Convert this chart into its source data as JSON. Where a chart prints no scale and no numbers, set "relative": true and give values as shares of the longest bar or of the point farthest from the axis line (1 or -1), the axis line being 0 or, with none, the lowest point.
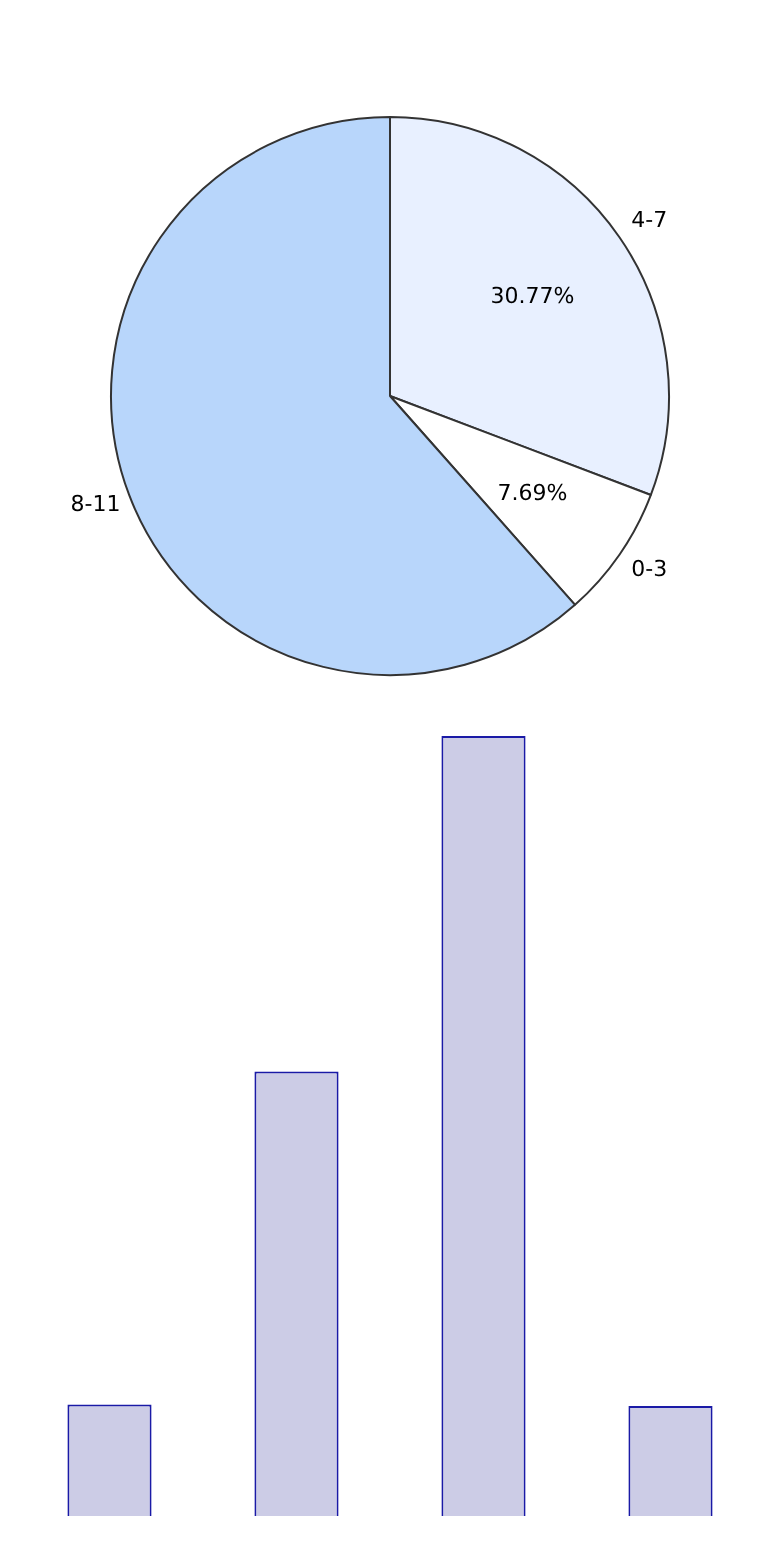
{
  "chart_data": [
    {
      "type": "pie",
      "categories": [
        "4-7",
        "0-3",
        "8-11"
      ],
      "values": [
        30.77,
        7.69,
        61.54
      ],
      "colors": [
        "#e8f0ff",
        "#ffffff",
        "#b8d6fb"
      ],
      "value_labels": [
        "30.77%",
        "7.69%",
        null
      ]
    },
    {
      "type": "bar",
      "relative": true,
      "categories": [
        null,
        null,
        null,
        null
      ],
      "values": [
        0.143,
        0.57,
        1,
        0.141
      ],
      "color": "#cccce6"
    }
  ]
}
